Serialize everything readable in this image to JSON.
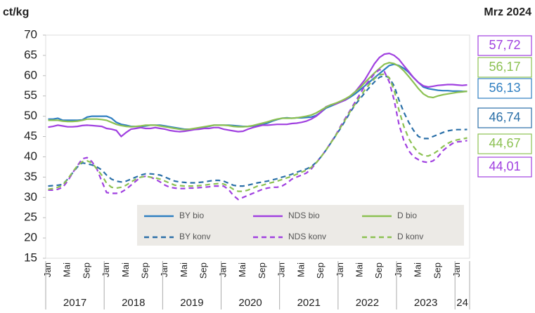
{
  "chart_data": {
    "type": "line",
    "y_unit": "ct/kg",
    "date_label": "Mrz 2024",
    "categories": [
      "Jan",
      null,
      null,
      null,
      "Mai",
      null,
      null,
      null,
      "Sep",
      null,
      null,
      null,
      "Jan",
      null,
      null,
      null,
      "Mai",
      null,
      null,
      null,
      "Sep",
      null,
      null,
      null,
      "Jan",
      null,
      null,
      null,
      "Mai",
      null,
      null,
      null,
      "Sep",
      null,
      null,
      null,
      "Jan",
      null,
      null,
      null,
      "Mai",
      null,
      null,
      null,
      "Sep",
      null,
      null,
      null,
      "Jan",
      null,
      null,
      null,
      "Mai",
      null,
      null,
      null,
      "Sep",
      null,
      null,
      null,
      "Jan",
      null,
      null,
      null,
      "Mai",
      null,
      null,
      null,
      "Sep",
      null,
      null,
      null,
      "Jan",
      null,
      null,
      null,
      "Mai",
      null,
      null,
      null,
      "Sep",
      null,
      null,
      null,
      "Jan",
      null,
      null
    ],
    "year_labels": [
      "2017",
      "2018",
      "2019",
      "2020",
      "2021",
      "2022",
      "2023",
      "24"
    ],
    "ylim": [
      15,
      70
    ],
    "yticks": [
      15,
      20,
      25,
      30,
      35,
      40,
      45,
      50,
      55,
      60,
      65,
      70
    ],
    "grid": false,
    "series": [
      {
        "name": "BY bio",
        "color": "#2f7fc1",
        "dashed": false,
        "last_label": "56,13",
        "values": [
          49.3,
          49.3,
          49.5,
          49,
          49,
          49,
          49,
          49.1,
          49.8,
          50,
          50,
          50,
          50,
          49.5,
          48.5,
          48,
          47.8,
          47.5,
          47.5,
          47.5,
          47.6,
          47.8,
          47.8,
          47.8,
          47.6,
          47.4,
          47.2,
          47,
          46.8,
          46.8,
          46.8,
          47,
          47.3,
          47.5,
          47.8,
          47.8,
          47.8,
          47.8,
          47.7,
          47.6,
          47.5,
          47.5,
          47.6,
          47.8,
          48,
          48.3,
          48.8,
          49.2,
          49.5,
          49.6,
          49.5,
          49.6,
          49.6,
          49.7,
          49.8,
          50.2,
          51,
          52,
          52.5,
          53,
          53.5,
          54,
          54.7,
          55.5,
          56.5,
          57.5,
          58.5,
          59.5,
          60.5,
          61.5,
          62.5,
          62.8,
          62.5,
          61.8,
          60.8,
          59.5,
          58.3,
          57.2,
          56.8,
          56.6,
          56.4,
          56.3,
          56.3,
          56.2,
          56.2,
          56.15,
          56.13
        ]
      },
      {
        "name": "NDS bio",
        "color": "#a040e0",
        "dashed": false,
        "last_label": "57,72",
        "values": [
          47.3,
          47.5,
          47.8,
          47.6,
          47.4,
          47.4,
          47.5,
          47.7,
          47.8,
          47.7,
          47.6,
          47.5,
          47,
          46.8,
          46.5,
          45,
          46,
          46.8,
          47,
          47.2,
          47,
          47,
          47.2,
          47,
          46.8,
          46.5,
          46.3,
          46.2,
          46.3,
          46.5,
          46.7,
          46.8,
          47,
          47,
          47.2,
          47.2,
          46.8,
          46.6,
          46.4,
          46.2,
          46.3,
          46.8,
          47.2,
          47.5,
          47.8,
          47.8,
          47.9,
          48,
          48,
          48,
          48.2,
          48.3,
          48.5,
          48.8,
          49.3,
          50,
          51,
          52.3,
          52.8,
          53,
          53.5,
          54,
          55,
          56,
          57.5,
          59,
          61,
          63,
          64.5,
          65.3,
          65.5,
          65,
          64,
          62.5,
          61,
          59.5,
          58.3,
          57.5,
          57.2,
          57.4,
          57.6,
          57.7,
          57.8,
          57.8,
          57.7,
          57.6,
          57.72
        ]
      },
      {
        "name": "D bio",
        "color": "#8cc152",
        "dashed": false,
        "last_label": "56,17",
        "values": [
          49,
          49,
          49,
          48.8,
          48.7,
          48.7,
          48.8,
          49,
          49.3,
          49.3,
          49.3,
          49.2,
          49,
          48.5,
          48,
          47.7,
          47.5,
          47.4,
          47.5,
          47.6,
          47.8,
          47.8,
          47.8,
          47.6,
          47.4,
          47.2,
          47,
          46.8,
          46.7,
          46.8,
          47,
          47.2,
          47.4,
          47.6,
          47.8,
          47.8,
          47.8,
          47.7,
          47.5,
          47.4,
          47.4,
          47.5,
          47.7,
          48,
          48.3,
          48.6,
          49,
          49.3,
          49.5,
          49.5,
          49.5,
          49.6,
          49.8,
          50,
          50.3,
          50.8,
          51.5,
          52.2,
          52.8,
          53.2,
          53.7,
          54.3,
          55,
          56,
          57,
          58.3,
          59.5,
          60.7,
          61.8,
          62.8,
          63.2,
          63,
          62.3,
          61.2,
          59.8,
          58.3,
          56.8,
          55.5,
          54.8,
          54.6,
          55,
          55.3,
          55.5,
          55.7,
          55.9,
          56,
          56.17
        ]
      },
      {
        "name": "BY konv",
        "color": "#2a6fa8",
        "dashed": true,
        "last_label": "46,74",
        "values": [
          32.8,
          32.9,
          33,
          33.2,
          34.5,
          36,
          37.5,
          38.5,
          38.3,
          38,
          37.5,
          36.8,
          35.5,
          34.5,
          34,
          33.8,
          34,
          34.5,
          35,
          35.5,
          35.8,
          35.8,
          35.7,
          35.5,
          35,
          34.5,
          34,
          33.8,
          33.7,
          33.6,
          33.6,
          33.7,
          33.8,
          34,
          34.2,
          34.2,
          34,
          33.5,
          33,
          32.8,
          32.8,
          33,
          33.3,
          33.6,
          33.8,
          34,
          34.3,
          34.6,
          35,
          35.3,
          35.7,
          36.2,
          36.6,
          37,
          37.6,
          38.6,
          40,
          41.6,
          43.4,
          45.2,
          47,
          49,
          51,
          52.8,
          54.3,
          55.8,
          57.2,
          58.5,
          59.6,
          60,
          59.5,
          57.5,
          54,
          51,
          48.5,
          46.5,
          45,
          44.5,
          44.5,
          45,
          45.5,
          46,
          46.4,
          46.6,
          46.7,
          46.7,
          46.74
        ]
      },
      {
        "name": "NDS konv",
        "color": "#a040e0",
        "dashed": true,
        "last_label": "44,01",
        "values": [
          31.8,
          31.8,
          32,
          32.5,
          34,
          36,
          37.8,
          39.5,
          39.8,
          38.8,
          37,
          34,
          31.2,
          31,
          31,
          31.3,
          32,
          33,
          34,
          35,
          35.2,
          35,
          34.5,
          33.8,
          33,
          32.5,
          32.3,
          32.2,
          32.2,
          32.3,
          32.3,
          32.4,
          32.5,
          32.6,
          32.8,
          32.8,
          32.8,
          32,
          30.5,
          29.5,
          30,
          30.5,
          31,
          31.5,
          32,
          32.3,
          32.5,
          32.5,
          32.8,
          33.5,
          34.5,
          35,
          35.5,
          36,
          37,
          38.5,
          40,
          41.6,
          43.5,
          45.3,
          47.5,
          49.5,
          51.5,
          53.5,
          55.5,
          57.5,
          59,
          60.5,
          61.5,
          61,
          58.5,
          54,
          48,
          44,
          41.5,
          40,
          39.3,
          38.8,
          38.6,
          39,
          40,
          41.5,
          42.5,
          43.3,
          43.7,
          43.8,
          44.01
        ]
      },
      {
        "name": "D konv",
        "color": "#8cc152",
        "dashed": true,
        "last_label": "44,67",
        "values": [
          32,
          32.2,
          32.5,
          33,
          34.5,
          36.2,
          37.8,
          38.8,
          39,
          38.5,
          37,
          35.5,
          33.5,
          32.5,
          32.3,
          32.5,
          33,
          33.8,
          34.5,
          35,
          35.2,
          35,
          34.8,
          34.5,
          34,
          33.5,
          33,
          32.9,
          32.8,
          32.8,
          32.8,
          32.9,
          33,
          33.2,
          33.3,
          33.4,
          33.3,
          32.8,
          32,
          31.5,
          31.5,
          31.8,
          32.3,
          32.8,
          33,
          33.4,
          33.7,
          34,
          34.4,
          34.8,
          35.2,
          35.7,
          36.2,
          36.7,
          37.4,
          38.5,
          40,
          41.6,
          43.4,
          45.2,
          47.2,
          49.2,
          51.2,
          53,
          54.8,
          56.5,
          58,
          59.3,
          60.2,
          60.4,
          59.5,
          56.5,
          51.5,
          47.5,
          44.5,
          42.5,
          41,
          40.3,
          40.2,
          40.7,
          41.5,
          42.5,
          43.3,
          43.9,
          44.2,
          44.4,
          44.67
        ]
      }
    ]
  }
}
